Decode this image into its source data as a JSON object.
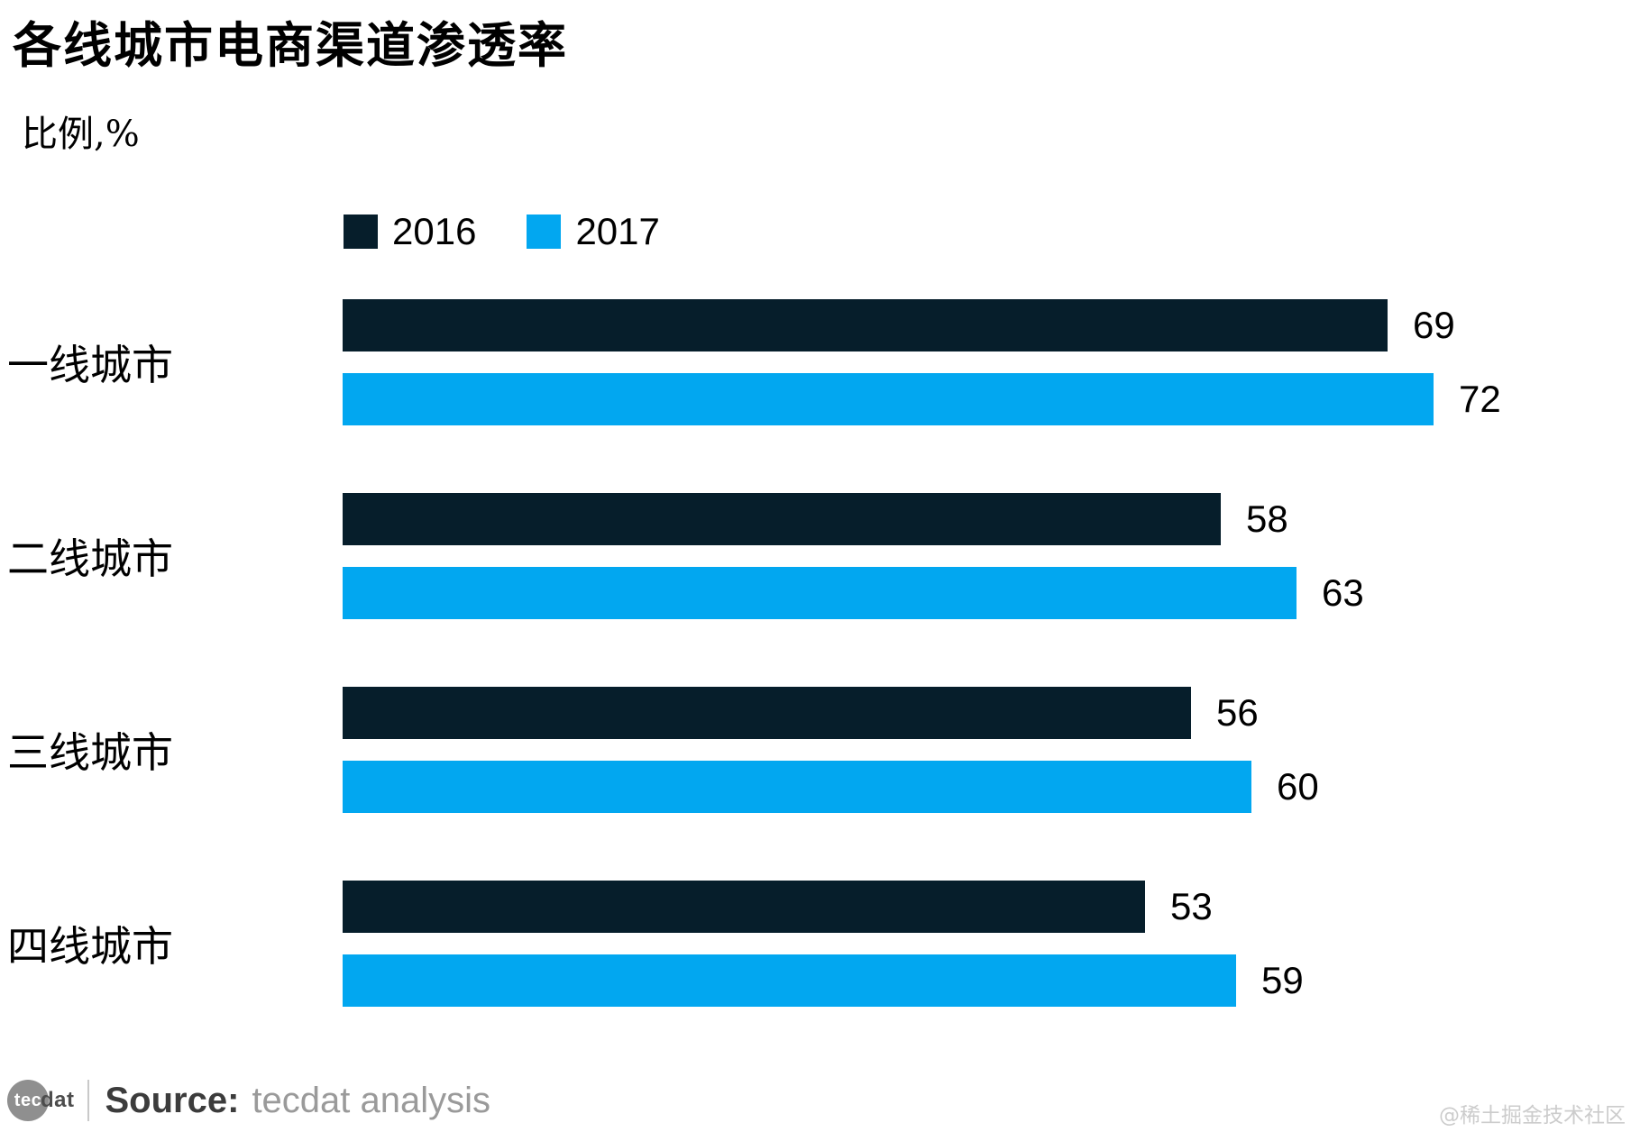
{
  "title": "各线城市电商渠道渗透率",
  "subtitle": "比例,%",
  "chart_data": {
    "type": "bar",
    "orientation": "horizontal",
    "title": "各线城市电商渠道渗透率",
    "unit_label": "比例,%",
    "categories": [
      "一线城市",
      "二线城市",
      "三线城市",
      "四线城市"
    ],
    "series": [
      {
        "name": "2016",
        "color": "#061e2b",
        "values": [
          69,
          58,
          56,
          53
        ]
      },
      {
        "name": "2017",
        "color": "#02a7f0",
        "values": [
          72,
          63,
          60,
          59
        ]
      }
    ],
    "xlim": [
      0,
      76
    ],
    "grid": false,
    "legend_position": "top-left",
    "value_labels": "outside-end"
  },
  "footer": {
    "logo_text_circle": "tec",
    "logo_text_rest": "dat",
    "source_label": "Source:",
    "source_value": "tecdat analysis"
  },
  "watermark": "@稀土掘金技术社区"
}
